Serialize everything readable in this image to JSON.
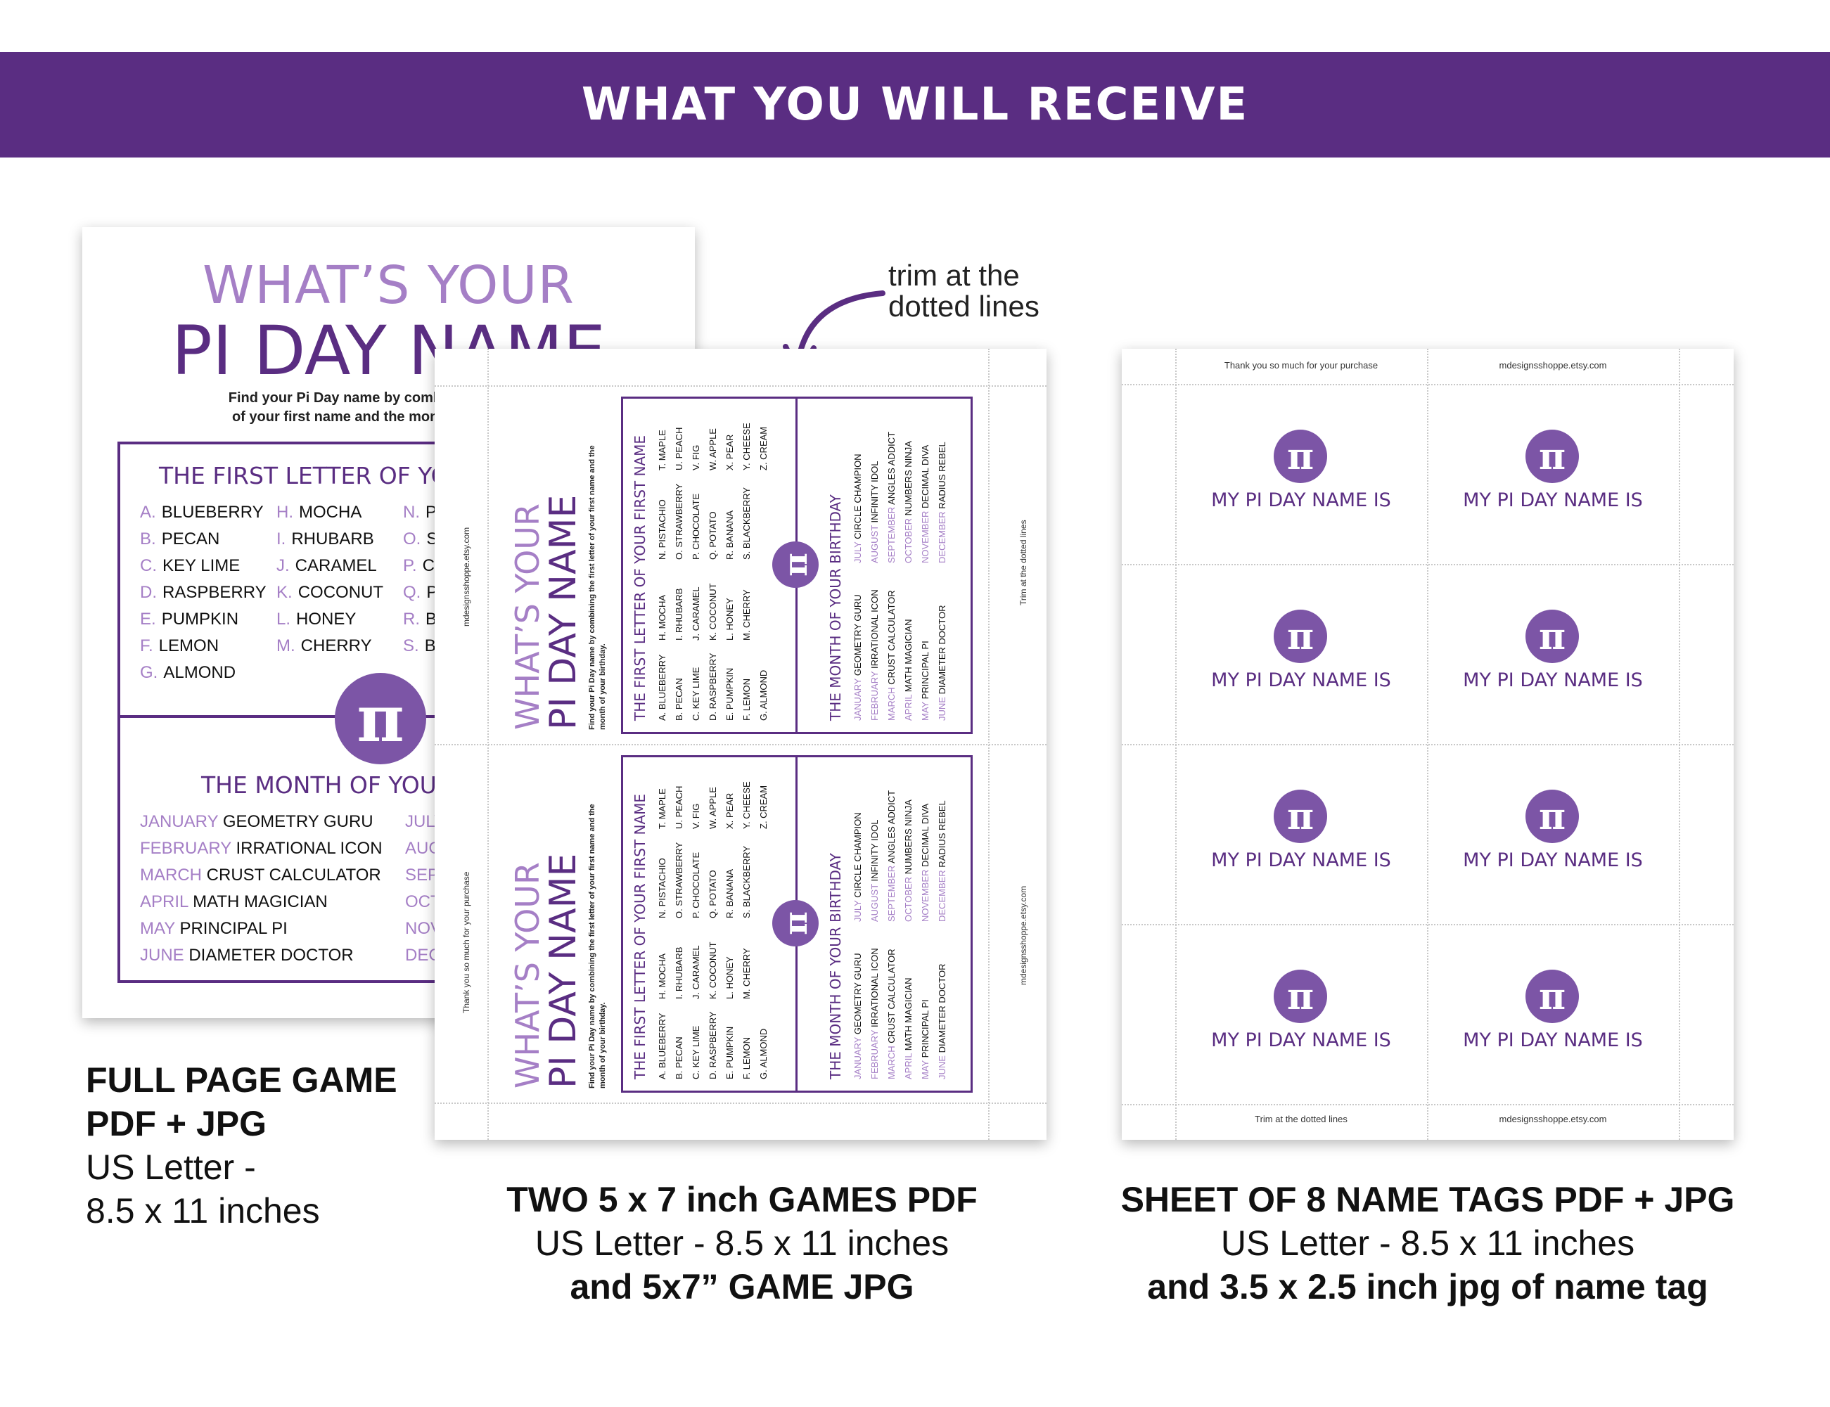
{
  "banner": {
    "title": "WHAT YOU WILL RECEIVE"
  },
  "full_page": {
    "title_line1": "WHAT’S YOUR",
    "title_line2": "PI DAY NAME",
    "intro_line1": "Find your Pi Day name by combining the first letter",
    "intro_line2": "of your first name and the month of your birthday.",
    "section1_title": "THE FIRST LETTER OF YOUR FIRST NAME",
    "letters_col1": [
      {
        "letter": "A.",
        "word": "BLUEBERRY"
      },
      {
        "letter": "B.",
        "word": "PECAN"
      },
      {
        "letter": "C.",
        "word": "KEY LIME"
      },
      {
        "letter": "D.",
        "word": "RASPBERRY"
      },
      {
        "letter": "E.",
        "word": "PUMPKIN"
      },
      {
        "letter": "F.",
        "word": "LEMON"
      },
      {
        "letter": "G.",
        "word": "ALMOND"
      }
    ],
    "letters_col2": [
      {
        "letter": "H.",
        "word": "MOCHA"
      },
      {
        "letter": "I.",
        "word": "RHUBARB"
      },
      {
        "letter": "J.",
        "word": "CARAMEL"
      },
      {
        "letter": "K.",
        "word": "COCONUT"
      },
      {
        "letter": "L.",
        "word": "HONEY"
      },
      {
        "letter": "M.",
        "word": "CHERRY"
      }
    ],
    "letters_col3": [
      {
        "letter": "N.",
        "word": "PI"
      },
      {
        "letter": "O.",
        "word": "ST"
      },
      {
        "letter": "P.",
        "word": "CH"
      },
      {
        "letter": "Q.",
        "word": "PO"
      },
      {
        "letter": "R.",
        "word": "BA"
      },
      {
        "letter": "S.",
        "word": "BL"
      }
    ],
    "section2_title": "THE MONTH OF YOUR BIRTHDAY",
    "months_col1": [
      {
        "month": "JANUARY",
        "word": "GEOMETRY GURU"
      },
      {
        "month": "FEBRUARY",
        "word": "IRRATIONAL ICON"
      },
      {
        "month": "MARCH",
        "word": "CRUST CALCULATOR"
      },
      {
        "month": "APRIL",
        "word": "MATH MAGICIAN"
      },
      {
        "month": "MAY",
        "word": "PRINCIPAL PI"
      },
      {
        "month": "JUNE",
        "word": "DIAMETER DOCTOR"
      }
    ],
    "months_col2": [
      "JULY",
      "AUG",
      "SEP",
      "OCT",
      "NOV",
      "DEC"
    ],
    "pi_symbol": "π"
  },
  "trim_note": {
    "line1": "trim at the",
    "line2": "dotted lines"
  },
  "games_sheet": {
    "card": {
      "title_line1": "WHAT’S YOUR",
      "title_line2": "PI DAY NAME",
      "intro": "Find your Pi Day name by combining the first letter of your first name and the month of your birthday.",
      "section1_title": "THE FIRST LETTER OF YOUR FIRST NAME",
      "col1": [
        "A. BLUEBERRY",
        "B. PECAN",
        "C. KEY LIME",
        "D. RASPBERRY",
        "E. PUMPKIN",
        "F. LEMON",
        "G. ALMOND"
      ],
      "col2": [
        "H. MOCHA",
        "I. RHUBARB",
        "J. CARAMEL",
        "K. COCONUT",
        "L. HONEY",
        "M. CHERRY"
      ],
      "col3": [
        "N. PISTACHIO",
        "O. STRAWBERRY",
        "P. CHOCOLATE",
        "Q. POTATO",
        "R. BANANA",
        "S. BLACKBERRY"
      ],
      "col4": [
        "T. MAPLE",
        "U. PEACH",
        "V. FIG",
        "W. APPLE",
        "X. PEAR",
        "Y. CHEESE",
        "Z. CREAM"
      ],
      "section2_title": "THE MONTH OF YOUR BIRTHDAY",
      "months1": [
        {
          "month": "JANUARY",
          "word": "GEOMETRY GURU"
        },
        {
          "month": "FEBRUARY",
          "word": "IRRATIONAL ICON"
        },
        {
          "month": "MARCH",
          "word": "CRUST CALCULATOR"
        },
        {
          "month": "APRIL",
          "word": "MATH MAGICIAN"
        },
        {
          "month": "MAY",
          "word": "PRINCIPAL PI"
        },
        {
          "month": "JUNE",
          "word": "DIAMETER DOCTOR"
        }
      ],
      "months2": [
        {
          "month": "JULY",
          "word": "CIRCLE CHAMPION"
        },
        {
          "month": "AUGUST",
          "word": "INFINITY IDOL"
        },
        {
          "month": "SEPTEMBER",
          "word": "ANGLES ADDICT"
        },
        {
          "month": "OCTOBER",
          "word": "NUMBERS NINJA"
        },
        {
          "month": "NOVEMBER",
          "word": "DECIMAL DIVA"
        },
        {
          "month": "DECEMBER",
          "word": "RADIUS REBEL"
        }
      ]
    },
    "left_note_top": "mdesignsshoppe.etsy.com",
    "left_note_bottom": "Thank you so much for your purchase",
    "right_note_top": "Trim at the dotted lines",
    "right_note_bottom": "mdesignsshoppe.etsy.com"
  },
  "tags_sheet": {
    "top_left": "Thank you so much for your purchase",
    "top_right": "mdesignsshoppe.etsy.com",
    "bottom_left": "Trim at the dotted lines",
    "bottom_right": "mdesignsshoppe.etsy.com",
    "tag_label": "MY PI DAY NAME IS"
  },
  "captions": {
    "full_page": {
      "line1": "FULL PAGE GAME",
      "line2": "PDF + JPG",
      "line3": "US Letter -",
      "line4": "8.5 x 11 inches"
    },
    "games": {
      "line1": "TWO 5 x 7 inch GAMES PDF",
      "line2": "US Letter - 8.5 x 11 inches",
      "line3": "and 5x7” GAME JPG"
    },
    "tags": {
      "line1": "SHEET OF 8 NAME TAGS PDF + JPG",
      "line2": "US Letter - 8.5 x 11 inches",
      "line3": "and 3.5 x 2.5 inch jpg of name tag"
    }
  },
  "colors": {
    "brand_purple": "#5a2d82",
    "lavender": "#a57fc6"
  }
}
